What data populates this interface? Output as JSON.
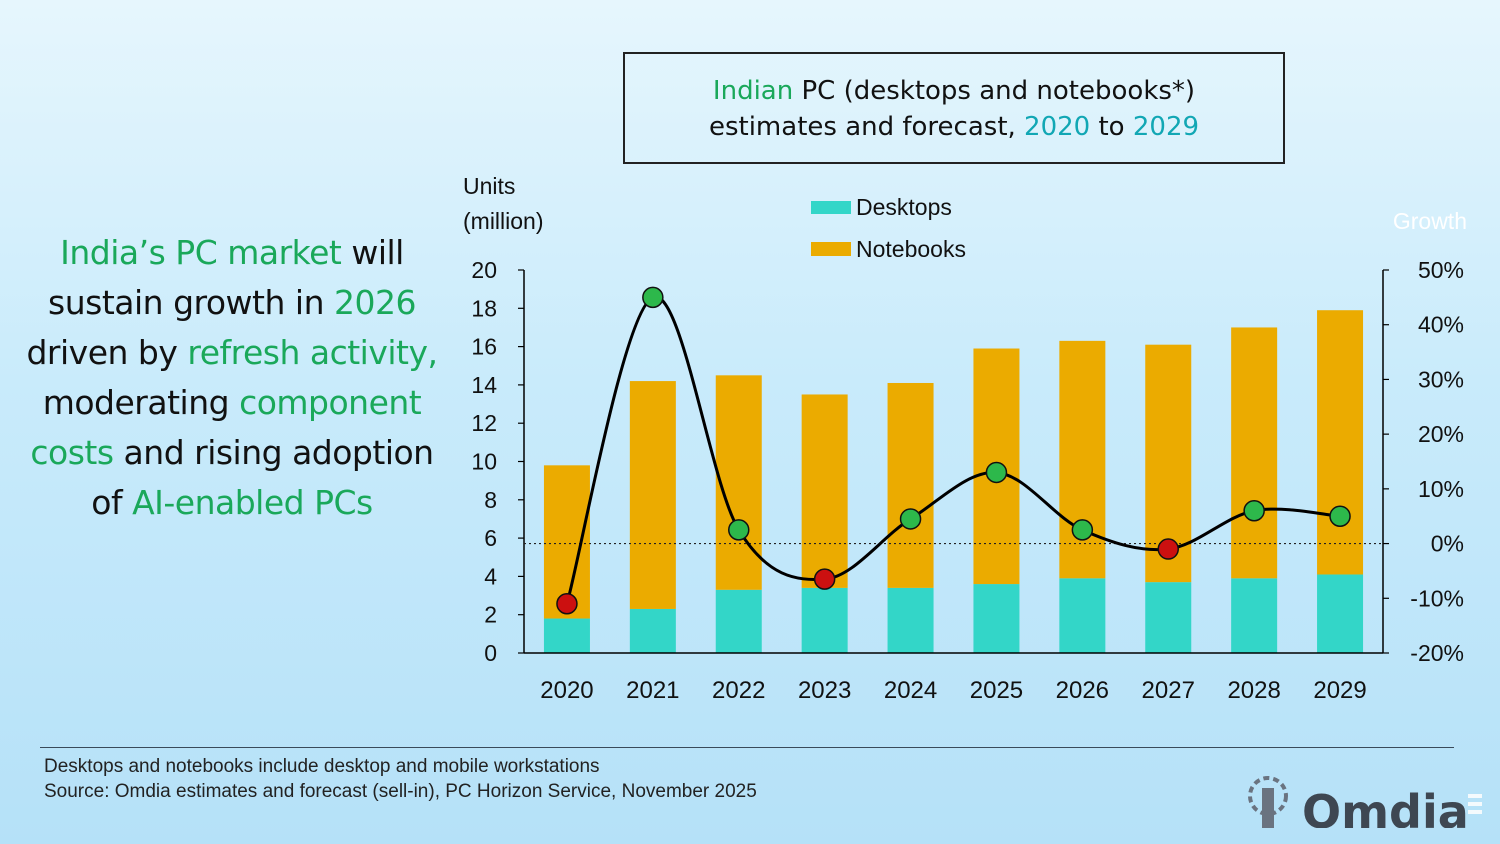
{
  "headline": {
    "p1": "India’s PC market",
    "p2": " will sustain growth in ",
    "p3": "2026",
    "p4": " driven by ",
    "p5": "refresh activity,",
    "p6": " moderating ",
    "p7": "component costs",
    "p8": " and rising adoption of ",
    "p9": "AI-enabled PCs"
  },
  "title": {
    "w1": "Indian",
    "w2": " PC (desktops and notebooks*)",
    "w3": "estimates and forecast, ",
    "w4": "2020",
    "w5": " to ",
    "w6": "2029"
  },
  "footer": {
    "note": "Desktops and notebooks include desktop and mobile workstations",
    "source": "Source: Omdia estimates and forecast (sell-in), PC Horizon Service, November 2025"
  },
  "logo": {
    "text": "Omdia"
  },
  "colors": {
    "desktops": "#33d6c8",
    "notebooks": "#ebab00",
    "growth_positive": "#2db84b",
    "growth_negative": "#cc1010",
    "accent_green": "#1aa85a",
    "accent_teal": "#12a7b4"
  },
  "chart_data": {
    "type": "bar",
    "stacked": true,
    "categories": [
      "2020",
      "2021",
      "2022",
      "2023",
      "2024",
      "2025",
      "2026",
      "2027",
      "2028",
      "2029"
    ],
    "series": [
      {
        "name": "Desktops",
        "values": [
          1.8,
          2.3,
          3.3,
          3.4,
          3.4,
          3.6,
          3.9,
          3.7,
          3.9,
          4.1
        ]
      },
      {
        "name": "Notebooks",
        "values": [
          8.0,
          11.9,
          11.2,
          10.1,
          10.7,
          12.3,
          12.4,
          12.4,
          13.1,
          13.8
        ]
      }
    ],
    "growth_line": {
      "name": "Growth",
      "values": [
        -11,
        45,
        2.5,
        -6.5,
        4.5,
        13,
        2.5,
        -1,
        6,
        5
      ]
    },
    "ylabel": "Units (million)",
    "ylabel_right": "Growth",
    "ylim": [
      0,
      20
    ],
    "y_ticks": [
      "0",
      "2",
      "4",
      "6",
      "8",
      "10",
      "12",
      "14",
      "16",
      "18",
      "20"
    ],
    "ylim_right": [
      -20,
      50
    ],
    "y2_ticks": [
      "-20%",
      "-10%",
      "0%",
      "10%",
      "20%",
      "30%",
      "40%",
      "50%"
    ],
    "legend": [
      "Desktops",
      "Notebooks"
    ],
    "legend_position": "top-center",
    "grid": false
  }
}
